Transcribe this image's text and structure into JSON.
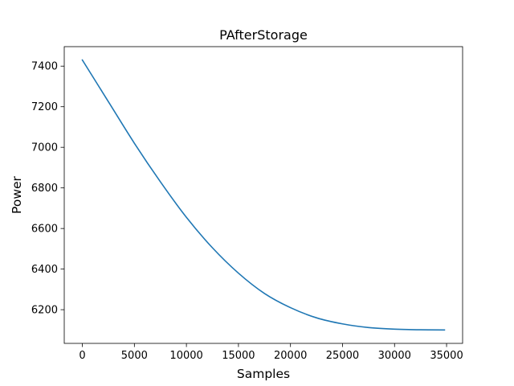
{
  "chart_data": {
    "type": "line",
    "title": "PAfterStorage",
    "xlabel": "Samples",
    "ylabel": "Power",
    "xlim": [
      -1740,
      36540
    ],
    "ylim": [
      6034,
      7496
    ],
    "xticks": [
      0,
      5000,
      10000,
      15000,
      20000,
      25000,
      30000,
      35000
    ],
    "xtick_labels": [
      "0",
      "5000",
      "10000",
      "15000",
      "20000",
      "25000",
      "30000",
      "35000"
    ],
    "yticks": [
      6200,
      6400,
      6600,
      6800,
      7000,
      7200,
      7400
    ],
    "ytick_labels": [
      "6200",
      "6400",
      "6600",
      "6800",
      "7000",
      "7200",
      "7400"
    ],
    "grid": false,
    "series": [
      {
        "color": "#1f77b4",
        "x": [
          0,
          2500,
          5000,
          7500,
          10000,
          12500,
          15000,
          17500,
          20000,
          22500,
          25000,
          27500,
          30000,
          32500,
          34800
        ],
        "y": [
          7430,
          7225,
          7020,
          6830,
          6655,
          6505,
          6380,
          6280,
          6210,
          6160,
          6130,
          6112,
          6104,
          6101,
          6100
        ]
      }
    ]
  }
}
